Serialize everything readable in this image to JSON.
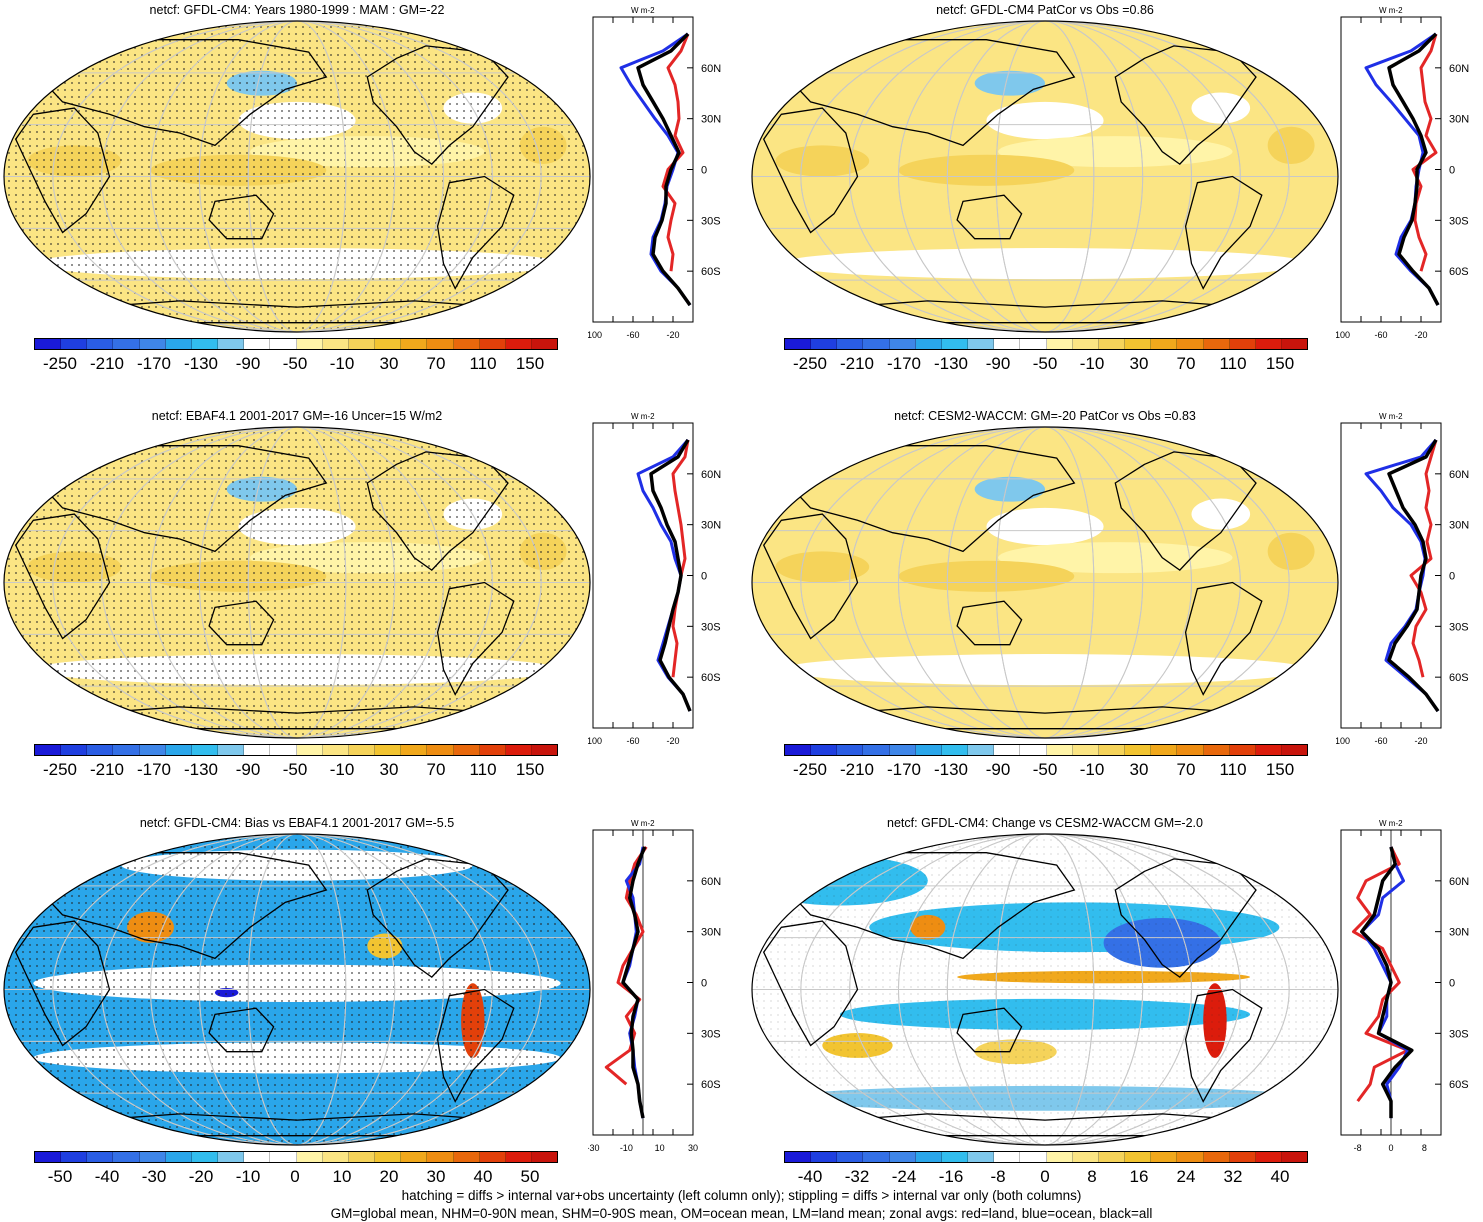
{
  "footer": {
    "line1": "hatching = diffs > internal var+obs uncertainty (left column only); stippling = diffs > internal var only (both columns)",
    "line2": "GM=global mean, NHM=0-90N mean, SHM=0-90S mean, OM=ocean mean, LM=land mean; zonal avgs: red=land, blue=ocean, black=all"
  },
  "colors": {
    "abs_scale": [
      "#1a1ad8",
      "#1f3fe0",
      "#2a5de4",
      "#3470e6",
      "#3f86e8",
      "#2aa6ea",
      "#32bdee",
      "#7fc8ec",
      "#ffffff",
      "#ffffff",
      "#fff4a8",
      "#fbe584",
      "#f5d35a",
      "#f2c431",
      "#f0a81c",
      "#ee8d12",
      "#e8680c",
      "#e2400a",
      "#dc1c0c",
      "#c8140c"
    ],
    "diff_scale": [
      "#1a1ad8",
      "#1f3fe0",
      "#2a5de4",
      "#3470e6",
      "#3f86e8",
      "#2aa6ea",
      "#32bdee",
      "#7fc8ec",
      "#ffffff",
      "#ffffff",
      "#fff4a8",
      "#fbe584",
      "#f5d35a",
      "#f2c431",
      "#f0a81c",
      "#ee8d12",
      "#e8680c",
      "#e2400a",
      "#dc1c0c",
      "#c8140c"
    ],
    "land": "#e32626",
    "ocean": "#1f2fe6",
    "all": "#000000"
  },
  "panels": [
    {
      "title": "netcf: GFDL-CM4: Years 1980-1999 : MAM : GM=-22",
      "map_style": "abs_dotted",
      "cbar_labels": [
        "-250",
        "-210",
        "-170",
        "-130",
        "-90",
        "-50",
        "-10",
        "30",
        "70",
        "110",
        "150"
      ],
      "zonal": {
        "xticks": [
          "-100",
          "-60",
          "-20"
        ],
        "ylabels": [
          "60N",
          "30N",
          "0",
          "30S",
          "60S"
        ],
        "units": "W m-2",
        "xmin": -100,
        "xmax": 0,
        "zero_line": false,
        "profile": "abs1"
      }
    },
    {
      "title": "netcf: GFDL-CM4 PatCor vs Obs =0.86",
      "map_style": "abs_plain",
      "cbar_labels": [
        "-250",
        "-210",
        "-170",
        "-130",
        "-90",
        "-50",
        "-10",
        "30",
        "70",
        "110",
        "150"
      ],
      "zonal": {
        "xticks": [
          "-100",
          "-60",
          "-20"
        ],
        "ylabels": [
          "60N",
          "30N",
          "0",
          "30S",
          "60S"
        ],
        "units": "W m-2",
        "xmin": -100,
        "xmax": 0,
        "zero_line": false,
        "profile": "abs2"
      }
    },
    {
      "title": "netcf: EBAF4.1 2001-2017 GM=-16 Uncer=15 W/m2",
      "map_style": "abs_dotted",
      "cbar_labels": [
        "-250",
        "-210",
        "-170",
        "-130",
        "-90",
        "-50",
        "-10",
        "30",
        "70",
        "110",
        "150"
      ],
      "zonal": {
        "xticks": [
          "-100",
          "-60",
          "-20"
        ],
        "ylabels": [
          "60N",
          "30N",
          "0",
          "30S",
          "60S"
        ],
        "units": "W m-2",
        "xmin": -100,
        "xmax": 0,
        "zero_line": false,
        "profile": "abs3"
      }
    },
    {
      "title": "netcf: CESM2-WACCM: GM=-20 PatCor vs Obs =0.83",
      "map_style": "abs_plain",
      "cbar_labels": [
        "-250",
        "-210",
        "-170",
        "-130",
        "-90",
        "-50",
        "-10",
        "30",
        "70",
        "110",
        "150"
      ],
      "zonal": {
        "xticks": [
          "-100",
          "-60",
          "-20"
        ],
        "ylabels": [
          "60N",
          "30N",
          "0",
          "30S",
          "60S"
        ],
        "units": "W m-2",
        "xmin": -100,
        "xmax": 0,
        "zero_line": false,
        "profile": "abs4"
      }
    },
    {
      "title": "netcf: GFDL-CM4: Bias vs EBAF4.1 2001-2017 GM=-5.5",
      "map_style": "bias",
      "cbar_labels": [
        "-50",
        "-40",
        "-30",
        "-20",
        "-10",
        "0",
        "10",
        "20",
        "30",
        "40",
        "50"
      ],
      "zonal": {
        "xticks": [
          "-30",
          "-10",
          "10",
          "30"
        ],
        "ylabels": [
          "60N",
          "30N",
          "0",
          "30S",
          "60S"
        ],
        "units": "W m-2",
        "xmin": -30,
        "xmax": 30,
        "zero_line": true,
        "profile": "bias"
      }
    },
    {
      "title": "netcf: GFDL-CM4: Change vs CESM2-WACCM GM=-2.0",
      "map_style": "change",
      "cbar_labels": [
        "-40",
        "-32",
        "-24",
        "-16",
        "-8",
        "0",
        "8",
        "16",
        "24",
        "32",
        "40"
      ],
      "zonal": {
        "xticks": [
          "-8",
          "0",
          "8"
        ],
        "ylabels": [
          "60N",
          "30N",
          "0",
          "30S",
          "60S"
        ],
        "units": "W m-2",
        "xmin": -12,
        "xmax": 12,
        "zero_line": true,
        "profile": "change"
      }
    }
  ],
  "chart_data": [
    {
      "type": "line",
      "title": "netcf: GFDL-CM4: Years 1980-1999 : MAM : GM=-22",
      "xlabel": "W m-2",
      "ylabel": "",
      "xlim": [
        -100,
        0
      ],
      "ylim": [
        -90,
        90
      ],
      "y": [
        80,
        70,
        60,
        50,
        40,
        30,
        20,
        10,
        0,
        -10,
        -20,
        -30,
        -40,
        -50,
        -60,
        -70,
        -80
      ],
      "series": [
        {
          "name": "land",
          "values": [
            -5,
            -12,
            -25,
            -18,
            -15,
            -14,
            -18,
            -10,
            -25,
            -30,
            -18,
            -22,
            -25,
            -20,
            -22,
            null,
            null
          ]
        },
        {
          "name": "ocean",
          "values": [
            -5,
            -30,
            -72,
            -62,
            -50,
            -38,
            -25,
            -15,
            -20,
            -26,
            -28,
            -32,
            -40,
            -42,
            -32,
            -15,
            -3
          ]
        },
        {
          "name": "all",
          "values": [
            -5,
            -22,
            -55,
            -50,
            -40,
            -30,
            -22,
            -14,
            -22,
            -27,
            -27,
            -31,
            -38,
            -40,
            -30,
            -15,
            -3
          ]
        }
      ]
    },
    {
      "type": "line",
      "title": "netcf: GFDL-CM4 PatCor vs Obs =0.86",
      "xlabel": "W m-2",
      "ylabel": "",
      "xlim": [
        -100,
        0
      ],
      "ylim": [
        -90,
        90
      ],
      "y": [
        80,
        70,
        60,
        50,
        40,
        30,
        20,
        10,
        0,
        -10,
        -20,
        -30,
        -40,
        -50,
        -60,
        -70,
        -80
      ],
      "series": [
        {
          "name": "land",
          "values": [
            -5,
            -10,
            -20,
            -18,
            -16,
            -10,
            -15,
            -5,
            -28,
            -20,
            -25,
            -26,
            -22,
            -15,
            -20,
            null,
            null
          ]
        },
        {
          "name": "ocean",
          "values": [
            -5,
            -30,
            -75,
            -65,
            -50,
            -36,
            -22,
            -18,
            -22,
            -25,
            -26,
            -30,
            -40,
            -45,
            -30,
            -12,
            -3
          ]
        },
        {
          "name": "all",
          "values": [
            -5,
            -22,
            -52,
            -48,
            -38,
            -28,
            -20,
            -15,
            -24,
            -24,
            -26,
            -29,
            -37,
            -42,
            -28,
            -12,
            -3
          ]
        }
      ]
    },
    {
      "type": "line",
      "title": "netcf: EBAF4.1 2001-2017 GM=-16 Uncer=15 W/m2",
      "xlabel": "W m-2",
      "ylabel": "",
      "xlim": [
        -100,
        0
      ],
      "ylim": [
        -90,
        90
      ],
      "y": [
        80,
        70,
        60,
        50,
        40,
        30,
        20,
        10,
        0,
        -10,
        -20,
        -30,
        -40,
        -50,
        -60,
        -70,
        -80
      ],
      "series": [
        {
          "name": "land",
          "values": [
            -5,
            -8,
            -20,
            -18,
            -15,
            -12,
            -10,
            -8,
            -12,
            -15,
            -18,
            -20,
            -16,
            -18,
            -20,
            null,
            null
          ]
        },
        {
          "name": "ocean",
          "values": [
            -5,
            -20,
            -55,
            -50,
            -40,
            -32,
            -22,
            -18,
            -12,
            -15,
            -20,
            -25,
            -30,
            -35,
            -25,
            -10,
            -3
          ]
        },
        {
          "name": "all",
          "values": [
            -5,
            -15,
            -42,
            -40,
            -32,
            -26,
            -18,
            -15,
            -12,
            -15,
            -20,
            -24,
            -28,
            -33,
            -24,
            -10,
            -3
          ]
        }
      ]
    },
    {
      "type": "line",
      "title": "netcf: CESM2-WACCM: GM=-20 PatCor vs Obs =0.83",
      "xlabel": "W m-2",
      "ylabel": "",
      "xlim": [
        -100,
        0
      ],
      "ylim": [
        -90,
        90
      ],
      "y": [
        80,
        70,
        60,
        50,
        40,
        30,
        20,
        10,
        0,
        -10,
        -20,
        -30,
        -40,
        -50,
        -60,
        -70,
        -80
      ],
      "series": [
        {
          "name": "land",
          "values": [
            -5,
            -10,
            -15,
            -12,
            -15,
            -10,
            -14,
            -10,
            -30,
            -20,
            -15,
            -25,
            -28,
            -22,
            -18,
            null,
            null
          ]
        },
        {
          "name": "ocean",
          "values": [
            -5,
            -20,
            -75,
            -60,
            -48,
            -30,
            -20,
            -16,
            -18,
            -22,
            -25,
            -36,
            -50,
            -55,
            -35,
            -15,
            -3
          ]
        },
        {
          "name": "all",
          "values": [
            -5,
            -15,
            -52,
            -45,
            -38,
            -26,
            -18,
            -15,
            -20,
            -22,
            -24,
            -34,
            -46,
            -52,
            -32,
            -15,
            -3
          ]
        }
      ]
    },
    {
      "type": "line",
      "title": "netcf: GFDL-CM4: Bias vs EBAF4.1 2001-2017 GM=-5.5",
      "xlabel": "W m-2",
      "ylabel": "",
      "xlim": [
        -30,
        30
      ],
      "ylim": [
        -90,
        90
      ],
      "y": [
        80,
        70,
        60,
        50,
        40,
        30,
        20,
        10,
        0,
        -10,
        -20,
        -30,
        -40,
        -50,
        -60,
        -70,
        -80
      ],
      "series": [
        {
          "name": "land",
          "values": [
            2,
            -5,
            -8,
            -10,
            -4,
            0,
            -6,
            -12,
            -15,
            -2,
            -10,
            -5,
            -8,
            -22,
            -10,
            null,
            null
          ]
        },
        {
          "name": "ocean",
          "values": [
            0,
            -2,
            -10,
            -6,
            -5,
            -4,
            -6,
            -8,
            -12,
            -3,
            -5,
            -8,
            -6,
            -5,
            -3,
            -2,
            0
          ]
        },
        {
          "name": "all",
          "values": [
            1,
            -3,
            -6,
            -8,
            -5,
            -3,
            -6,
            -9,
            -12,
            -3,
            -6,
            -7,
            -6,
            -6,
            -3,
            -2,
            0
          ]
        }
      ]
    },
    {
      "type": "line",
      "title": "netcf: GFDL-CM4: Change vs CESM2-WACCM GM=-2.0",
      "xlabel": "W m-2",
      "ylabel": "",
      "xlim": [
        -12,
        12
      ],
      "ylim": [
        -90,
        90
      ],
      "y": [
        80,
        70,
        60,
        50,
        40,
        30,
        20,
        10,
        0,
        -10,
        -20,
        -30,
        -40,
        -50,
        -60,
        -70,
        -80
      ],
      "series": [
        {
          "name": "land",
          "values": [
            0,
            2,
            -6,
            -8,
            -5,
            -9,
            -2,
            0,
            2,
            -2,
            -3,
            -6,
            4,
            -4,
            -5,
            -8,
            null
          ]
        },
        {
          "name": "ocean",
          "values": [
            0,
            1,
            3,
            -2,
            -3,
            -7,
            -4,
            -2,
            0,
            -1,
            -1,
            -3,
            4,
            2,
            -1,
            0,
            0
          ]
        },
        {
          "name": "all",
          "values": [
            0,
            1,
            -2,
            -3,
            -4,
            -7,
            -3,
            -1,
            0,
            -1,
            -2,
            -3,
            5,
            1,
            -2,
            0,
            0
          ]
        }
      ]
    }
  ]
}
